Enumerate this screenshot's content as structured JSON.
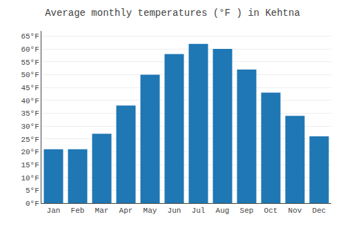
{
  "chart_data": {
    "type": "bar",
    "title": "Average monthly temperatures (°F ) in Kehtna",
    "categories": [
      "Jan",
      "Feb",
      "Mar",
      "Apr",
      "May",
      "Jun",
      "Jul",
      "Aug",
      "Sep",
      "Oct",
      "Nov",
      "Dec"
    ],
    "values": [
      21,
      21,
      27,
      38,
      50,
      58,
      62,
      60,
      52,
      43,
      34,
      26
    ],
    "ylim": [
      0,
      67
    ],
    "yticks": [
      {
        "value": 0,
        "label": "0°F"
      },
      {
        "value": 5,
        "label": "5°F"
      },
      {
        "value": 10,
        "label": "10°F"
      },
      {
        "value": 15,
        "label": "15°F"
      },
      {
        "value": 20,
        "label": "20°F"
      },
      {
        "value": 25,
        "label": "25°F"
      },
      {
        "value": 30,
        "label": "30°F"
      },
      {
        "value": 35,
        "label": "35°F"
      },
      {
        "value": 40,
        "label": "40°F"
      },
      {
        "value": 45,
        "label": "45°F"
      },
      {
        "value": 50,
        "label": "50°F"
      },
      {
        "value": 55,
        "label": "55°F"
      },
      {
        "value": 60,
        "label": "60°F"
      },
      {
        "value": 65,
        "label": "65°F"
      }
    ],
    "grid": true
  }
}
